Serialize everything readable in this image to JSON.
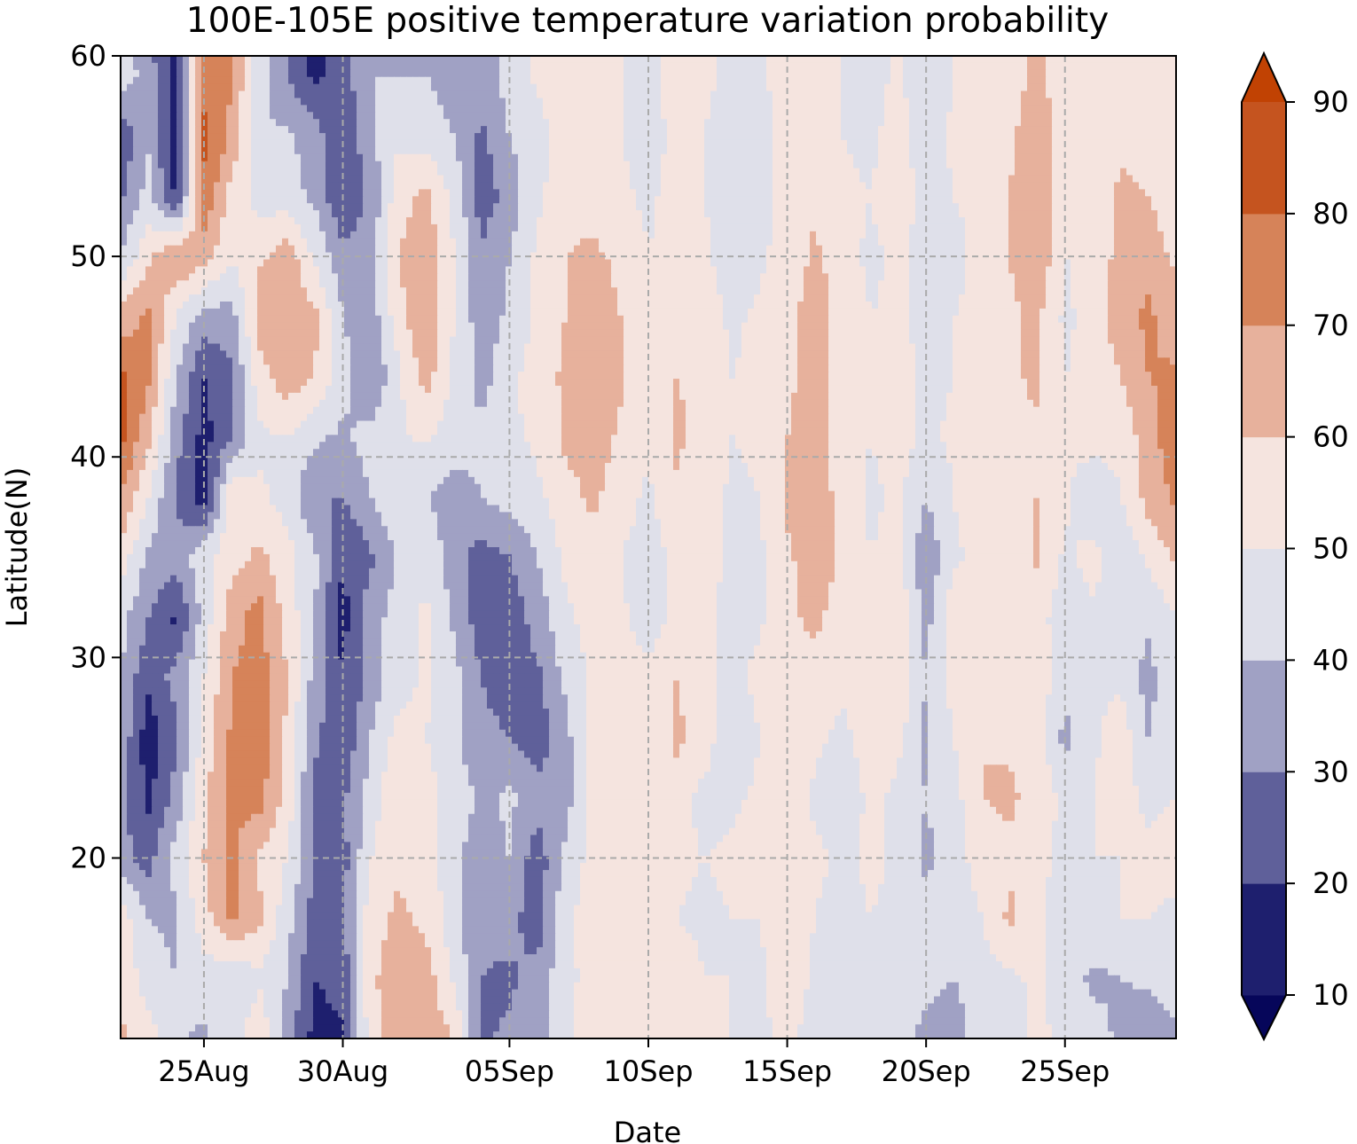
{
  "chart_data": {
    "type": "heatmap",
    "subtype": "filled-contour (Hovmoller)",
    "title": "100E-105E positive temperature variation probability",
    "xlabel": "Date",
    "ylabel": "Latitude(N)",
    "xticks": [
      {
        "label": "25Aug",
        "day": 4
      },
      {
        "label": "30Aug",
        "day": 9
      },
      {
        "label": "05Sep",
        "day": 15
      },
      {
        "label": "10Sep",
        "day": 20
      },
      {
        "label": "15Sep",
        "day": 25
      },
      {
        "label": "20Sep",
        "day": 30
      },
      {
        "label": "25Sep",
        "day": 35
      }
    ],
    "xlim_days": [
      1,
      39
    ],
    "yticks": [
      20,
      30,
      40,
      50,
      60
    ],
    "ylim": [
      11,
      60
    ],
    "grid": true,
    "colorbar": {
      "levels": [
        10,
        20,
        30,
        40,
        50,
        60,
        70,
        80,
        90
      ],
      "tick_labels": [
        "10",
        "20",
        "30",
        "40",
        "50",
        "60",
        "70",
        "80",
        "90"
      ],
      "colors": [
        "#06065a",
        "#1e1f6e",
        "#5f609a",
        "#a0a1c4",
        "#dfe0ea",
        "#f5e4df",
        "#e7b19c",
        "#d68359",
        "#c5541f",
        "#c14203"
      ],
      "extend": "both"
    },
    "grid_days": [
      1,
      2,
      3,
      4,
      5,
      6,
      7,
      8,
      9,
      10,
      11,
      12,
      13,
      14,
      15,
      16,
      17,
      18,
      19,
      20,
      21,
      22,
      23,
      24,
      25,
      26,
      27,
      28,
      29,
      30,
      31,
      32,
      33,
      34,
      35,
      36,
      37,
      38,
      39
    ],
    "grid_lats": [
      11,
      14,
      17,
      20,
      23,
      26,
      29,
      32,
      35,
      38,
      41,
      44,
      47,
      50,
      53,
      56,
      59,
      60
    ],
    "note_values": "values are probability (%) estimated from the contour bands; each row = one latitude from grid_lats, each column = one day from grid_days",
    "values": [
      [
        62,
        55,
        42,
        38,
        46,
        58,
        35,
        16,
        18,
        55,
        68,
        68,
        60,
        28,
        32,
        36,
        48,
        56,
        54,
        54,
        56,
        52,
        50,
        48,
        52,
        46,
        50,
        46,
        46,
        36,
        34,
        46,
        44,
        52,
        48,
        44,
        38,
        30,
        38
      ],
      [
        58,
        45,
        40,
        46,
        40,
        48,
        40,
        20,
        24,
        58,
        66,
        65,
        48,
        30,
        28,
        34,
        46,
        55,
        52,
        54,
        56,
        50,
        50,
        48,
        56,
        48,
        46,
        46,
        50,
        44,
        40,
        46,
        48,
        52,
        44,
        38,
        40,
        42,
        46
      ],
      [
        56,
        40,
        38,
        56,
        72,
        62,
        44,
        25,
        26,
        56,
        62,
        58,
        44,
        32,
        34,
        24,
        48,
        54,
        52,
        56,
        50,
        48,
        50,
        50,
        56,
        50,
        46,
        50,
        48,
        44,
        42,
        50,
        62,
        54,
        40,
        48,
        50,
        50,
        48
      ],
      [
        34,
        26,
        44,
        60,
        72,
        58,
        50,
        30,
        26,
        50,
        58,
        56,
        42,
        34,
        40,
        24,
        42,
        54,
        54,
        56,
        52,
        50,
        52,
        56,
        58,
        52,
        48,
        52,
        48,
        38,
        44,
        56,
        58,
        56,
        44,
        50,
        50,
        52,
        54
      ],
      [
        32,
        18,
        34,
        58,
        72,
        74,
        56,
        26,
        28,
        44,
        60,
        54,
        46,
        38,
        42,
        34,
        36,
        52,
        52,
        54,
        56,
        46,
        48,
        52,
        58,
        48,
        44,
        52,
        48,
        40,
        46,
        60,
        62,
        56,
        48,
        50,
        54,
        48,
        50
      ],
      [
        38,
        14,
        28,
        54,
        72,
        76,
        58,
        32,
        22,
        40,
        54,
        50,
        42,
        32,
        30,
        24,
        36,
        54,
        60,
        52,
        62,
        56,
        40,
        50,
        56,
        52,
        48,
        54,
        52,
        38,
        50,
        60,
        58,
        56,
        36,
        48,
        56,
        40,
        48
      ],
      [
        40,
        22,
        34,
        50,
        70,
        74,
        60,
        36,
        20,
        34,
        46,
        52,
        44,
        30,
        26,
        28,
        42,
        52,
        60,
        52,
        60,
        54,
        46,
        54,
        58,
        56,
        52,
        58,
        60,
        40,
        54,
        58,
        56,
        56,
        44,
        46,
        48,
        36,
        50
      ],
      [
        44,
        30,
        18,
        44,
        66,
        74,
        56,
        40,
        16,
        36,
        44,
        52,
        38,
        24,
        24,
        34,
        48,
        54,
        52,
        44,
        54,
        56,
        42,
        48,
        58,
        62,
        56,
        58,
        58,
        36,
        58,
        58,
        52,
        54,
        44,
        48,
        46,
        42,
        50
      ],
      [
        56,
        38,
        34,
        48,
        56,
        62,
        54,
        42,
        20,
        28,
        42,
        48,
        34,
        26,
        30,
        40,
        52,
        56,
        50,
        46,
        52,
        56,
        48,
        48,
        58,
        66,
        58,
        50,
        54,
        32,
        48,
        54,
        54,
        62,
        48,
        54,
        42,
        52,
        62
      ],
      [
        70,
        50,
        28,
        14,
        58,
        52,
        46,
        30,
        30,
        40,
        48,
        40,
        36,
        40,
        44,
        48,
        56,
        62,
        54,
        48,
        58,
        56,
        48,
        50,
        62,
        66,
        56,
        48,
        52,
        40,
        50,
        56,
        60,
        60,
        52,
        42,
        50,
        64,
        72
      ],
      [
        84,
        62,
        34,
        16,
        30,
        48,
        50,
        42,
        38,
        44,
        48,
        52,
        44,
        42,
        48,
        52,
        62,
        66,
        58,
        52,
        62,
        56,
        50,
        52,
        60,
        66,
        54,
        50,
        54,
        48,
        52,
        56,
        58,
        58,
        52,
        54,
        52,
        66,
        76
      ],
      [
        82,
        72,
        40,
        20,
        28,
        56,
        66,
        60,
        44,
        30,
        48,
        64,
        48,
        36,
        48,
        54,
        62,
        68,
        62,
        52,
        60,
        58,
        50,
        52,
        58,
        64,
        54,
        50,
        56,
        46,
        50,
        54,
        58,
        62,
        50,
        52,
        60,
        70,
        72
      ],
      [
        64,
        72,
        50,
        36,
        36,
        66,
        70,
        62,
        40,
        34,
        56,
        70,
        50,
        34,
        42,
        52,
        60,
        64,
        60,
        50,
        56,
        56,
        48,
        52,
        56,
        66,
        56,
        50,
        52,
        46,
        50,
        52,
        58,
        62,
        48,
        54,
        66,
        72,
        64
      ],
      [
        40,
        58,
        70,
        64,
        52,
        58,
        66,
        48,
        34,
        36,
        60,
        68,
        50,
        32,
        40,
        52,
        60,
        62,
        58,
        50,
        56,
        52,
        44,
        48,
        54,
        62,
        54,
        48,
        52,
        46,
        48,
        52,
        60,
        68,
        50,
        52,
        64,
        66,
        58
      ],
      [
        28,
        44,
        18,
        78,
        56,
        46,
        44,
        38,
        20,
        32,
        56,
        62,
        48,
        24,
        34,
        48,
        56,
        56,
        52,
        48,
        54,
        50,
        46,
        48,
        52,
        58,
        52,
        50,
        56,
        46,
        50,
        52,
        60,
        70,
        52,
        54,
        62,
        60,
        52
      ],
      [
        22,
        38,
        14,
        82,
        68,
        40,
        42,
        34,
        20,
        38,
        48,
        46,
        40,
        28,
        40,
        46,
        54,
        54,
        50,
        46,
        52,
        50,
        46,
        48,
        52,
        56,
        50,
        48,
        54,
        44,
        52,
        52,
        58,
        66,
        54,
        54,
        58,
        56,
        52
      ],
      [
        46,
        36,
        14,
        78,
        70,
        44,
        30,
        18,
        26,
        40,
        40,
        40,
        34,
        34,
        44,
        52,
        56,
        54,
        50,
        46,
        56,
        52,
        48,
        48,
        54,
        56,
        50,
        46,
        52,
        42,
        50,
        52,
        56,
        62,
        56,
        52,
        54,
        56,
        54
      ],
      [
        44,
        34,
        14,
        78,
        70,
        44,
        30,
        16,
        26,
        40,
        38,
        40,
        34,
        34,
        44,
        52,
        56,
        54,
        50,
        46,
        56,
        52,
        48,
        48,
        54,
        56,
        50,
        46,
        52,
        42,
        50,
        52,
        56,
        62,
        56,
        52,
        54,
        56,
        54
      ]
    ]
  }
}
